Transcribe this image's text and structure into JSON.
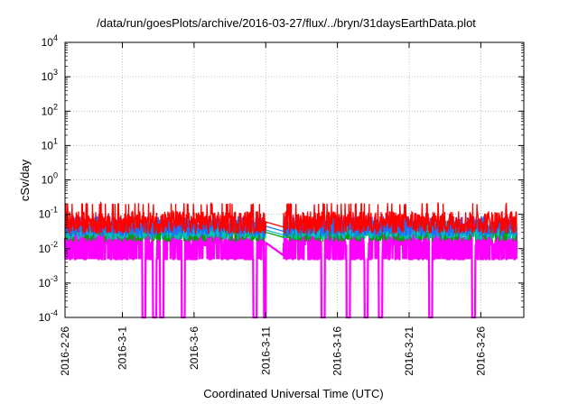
{
  "chart_data": {
    "type": "line",
    "title": "/data/run/goesPlots/archive/2016-03-27/flux/../bryn/31daysEarthData.plot",
    "xlabel": "Coordinated Universal Time (UTC)",
    "ylabel": "cSv/day",
    "yscale": "log",
    "ylim": [
      0.0001,
      10000
    ],
    "xlim": [
      "2016-02-26",
      "2016-03-29"
    ],
    "grid": true,
    "x_ticks": [
      "2016-2-26",
      "2016-3-1",
      "2016-3-6",
      "2016-3-11",
      "2016-3-16",
      "2016-3-21",
      "2016-3-26"
    ],
    "y_ticks": [
      {
        "base": "10",
        "exp": "-4"
      },
      {
        "base": "10",
        "exp": "-3"
      },
      {
        "base": "10",
        "exp": "-2"
      },
      {
        "base": "10",
        "exp": "-1"
      },
      {
        "base": "10",
        "exp": "0"
      },
      {
        "base": "10",
        "exp": "1"
      },
      {
        "base": "10",
        "exp": "2"
      },
      {
        "base": "10",
        "exp": "3"
      },
      {
        "base": "10",
        "exp": "4"
      }
    ],
    "data_gap": [
      "2016-03-11T00:00",
      "2016-03-12T06:00"
    ],
    "series": [
      {
        "color": "#ff0000",
        "typical": 0.06,
        "spread": 0.35
      },
      {
        "color": "#1e6fff",
        "typical": 0.045,
        "spread": 0.3
      },
      {
        "color": "#00c0c0",
        "typical": 0.035,
        "spread": 0.28
      },
      {
        "color": "#00a000",
        "typical": 0.03,
        "spread": 0.28
      },
      {
        "color": "#ff00ff",
        "typical": 0.015,
        "spread": 0.45,
        "dips_to_floor": [
          "2016-03-02T12:00",
          "2016-03-03T06:00",
          "2016-03-03T18:00",
          "2016-03-05T06:00",
          "2016-03-10T06:00",
          "2016-03-11T00:00",
          "2016-03-15T00:00",
          "2016-03-16T18:00",
          "2016-03-18T00:00",
          "2016-03-19T00:00",
          "2016-03-22T12:00",
          "2016-03-25T12:00"
        ]
      }
    ]
  }
}
